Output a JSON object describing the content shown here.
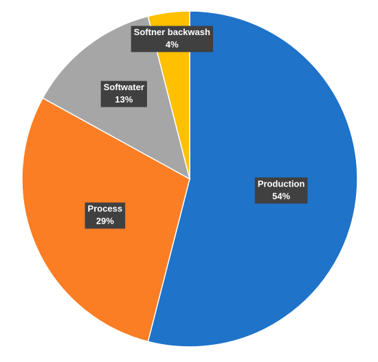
{
  "chart_data": {
    "type": "pie",
    "categories": [
      "Production",
      "Process",
      "Softwater",
      "Softner backwash"
    ],
    "values": [
      54,
      29,
      13,
      4
    ],
    "value_labels": [
      "54%",
      "29%",
      "13%",
      "4%"
    ],
    "colors": [
      "#1f73c9",
      "#fb7e24",
      "#a6a6a6",
      "#ffc000"
    ]
  }
}
